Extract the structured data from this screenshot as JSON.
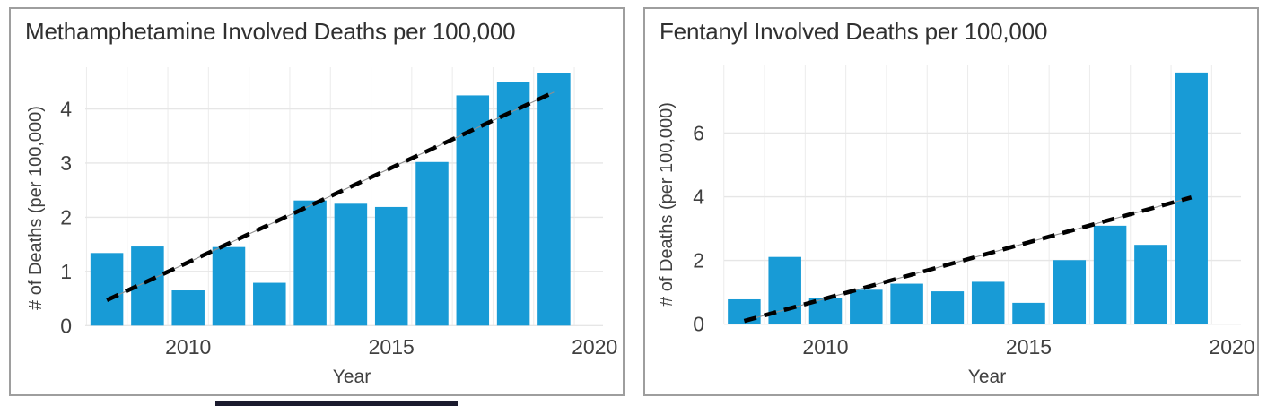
{
  "colors": {
    "background": "#ffffff",
    "bar": "#189bd6",
    "grid": "#e6e6e6",
    "grid_vertical": "#ececec",
    "panel_border": "#9e9e9e",
    "title_text": "#303030",
    "tick_text": "#404040",
    "trend": "#000000",
    "trend_underline": "#8f8f8f",
    "artifact_bar": "#1b1b2e"
  },
  "chart_data": [
    {
      "type": "bar",
      "title": "Methamphetamine Involved Deaths per 100,000",
      "xlabel": "Year",
      "ylabel": "# of Deaths (per 100,000)",
      "x": [
        2008,
        2009,
        2010,
        2011,
        2012,
        2013,
        2014,
        2015,
        2016,
        2017,
        2018,
        2019
      ],
      "values": [
        1.34,
        1.46,
        0.65,
        1.45,
        0.79,
        2.31,
        2.25,
        2.19,
        3.02,
        4.25,
        4.49,
        4.67
      ],
      "xticks": [
        2010,
        2015,
        2020
      ],
      "yticks": [
        0,
        1,
        2,
        3,
        4
      ],
      "xlim": [
        2007.5,
        2020.5
      ],
      "ylim": [
        0,
        4.77
      ],
      "grid": true,
      "legend": "none",
      "trend": {
        "style": "dashed",
        "x": [
          2008,
          2019
        ],
        "y": [
          0.47,
          4.31
        ]
      }
    },
    {
      "type": "bar",
      "title": "Fentanyl Involved Deaths per 100,000",
      "xlabel": "Year",
      "ylabel": "# of Deaths (per 100,000)",
      "x": [
        2008,
        2009,
        2010,
        2011,
        2012,
        2013,
        2014,
        2015,
        2016,
        2017,
        2018,
        2019
      ],
      "values": [
        0.78,
        2.11,
        0.81,
        1.08,
        1.27,
        1.03,
        1.33,
        0.67,
        2.01,
        3.09,
        2.49,
        7.9
      ],
      "xticks": [
        2010,
        2015,
        2020
      ],
      "yticks": [
        0,
        2,
        4,
        6
      ],
      "xlim": [
        2007.5,
        2020.5
      ],
      "ylim": [
        0,
        8.15
      ],
      "grid": true,
      "legend": "none",
      "trend": {
        "style": "dashed",
        "x": [
          2008,
          2019
        ],
        "y": [
          0.1,
          3.98
        ]
      }
    }
  ]
}
